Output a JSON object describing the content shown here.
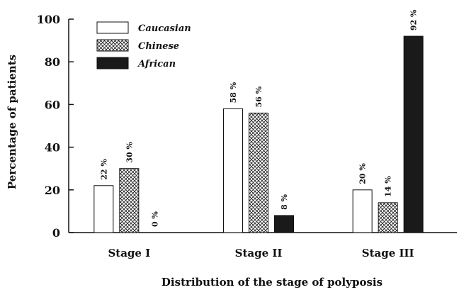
{
  "chart_data": {
    "type": "bar",
    "title": "",
    "xlabel": "Distribution of the stage of  polyposis",
    "ylabel": "Percentage of patients",
    "categories": [
      "Stage I",
      "Stage II",
      "Stage III"
    ],
    "ylim": [
      0,
      100
    ],
    "yticks": [
      0,
      20,
      40,
      60,
      80,
      100
    ],
    "series": [
      {
        "name": "Caucasian",
        "values": [
          22,
          58,
          20
        ],
        "labels": [
          "22 %",
          "58 %",
          "20 %"
        ],
        "pattern": "white"
      },
      {
        "name": "Chinese",
        "values": [
          30,
          56,
          14
        ],
        "labels": [
          "30 %",
          "56 %",
          "14 %"
        ],
        "pattern": "crosshatch"
      },
      {
        "name": "African",
        "values": [
          0,
          8,
          92
        ],
        "labels": [
          "0 %",
          "8 %",
          "92 %"
        ],
        "pattern": "black"
      }
    ],
    "legend_position": "top-left",
    "grid": false,
    "colors": {
      "ink": "#111111",
      "fill_white": "#ffffff",
      "fill_black": "#1a1a1a"
    }
  }
}
